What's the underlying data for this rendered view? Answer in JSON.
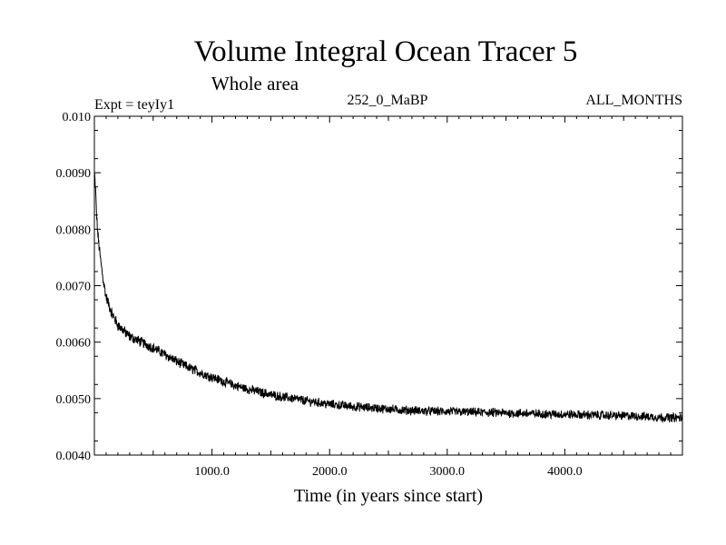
{
  "chart_data": {
    "type": "line",
    "title": "Volume Integral Ocean Tracer 5",
    "subtitle": "Whole area",
    "expt_label": "Expt = teyIy1",
    "center_label": "252_0_MaBP",
    "right_label": "ALL_MONTHS",
    "xlabel": "Time (in years since start)",
    "ylabel": "",
    "xlim": [
      0,
      5000
    ],
    "ylim": [
      0.004,
      0.01
    ],
    "x_ticks": [
      1000,
      2000,
      3000,
      4000
    ],
    "x_tick_labels": [
      "1000.0",
      "2000.0",
      "3000.0",
      "4000.0"
    ],
    "y_ticks": [
      0.004,
      0.005,
      0.006,
      0.007,
      0.008,
      0.009,
      0.01
    ],
    "y_tick_labels": [
      "0.0040",
      "0.0050",
      "0.0060",
      "0.0070",
      "0.0080",
      "0.0090",
      "0.010"
    ],
    "grid": false,
    "line_color": "#000000",
    "series": [
      {
        "x": [
          0,
          10,
          20,
          30,
          50,
          75,
          100,
          150,
          200,
          300,
          400,
          500,
          600,
          700,
          800,
          900,
          1000,
          1100,
          1200,
          1300,
          1400,
          1500,
          1600,
          1700,
          1800,
          1900,
          2000,
          2200,
          2400,
          2600,
          2800,
          3000,
          3200,
          3400,
          3600,
          3800,
          4000,
          4200,
          4400,
          4600,
          4800,
          5000
        ],
        "y": [
          0.009,
          0.0087,
          0.0082,
          0.0079,
          0.0075,
          0.0071,
          0.0068,
          0.0065,
          0.0063,
          0.0061,
          0.006,
          0.0059,
          0.00578,
          0.00566,
          0.00555,
          0.00546,
          0.00538,
          0.0053,
          0.00523,
          0.00517,
          0.00512,
          0.00507,
          0.00503,
          0.005,
          0.00496,
          0.00493,
          0.0049,
          0.00486,
          0.00483,
          0.0048,
          0.00478,
          0.00477,
          0.00476,
          0.00475,
          0.00474,
          0.00473,
          0.00472,
          0.00471,
          0.0047,
          0.00469,
          0.00467,
          0.00466
        ]
      }
    ]
  }
}
